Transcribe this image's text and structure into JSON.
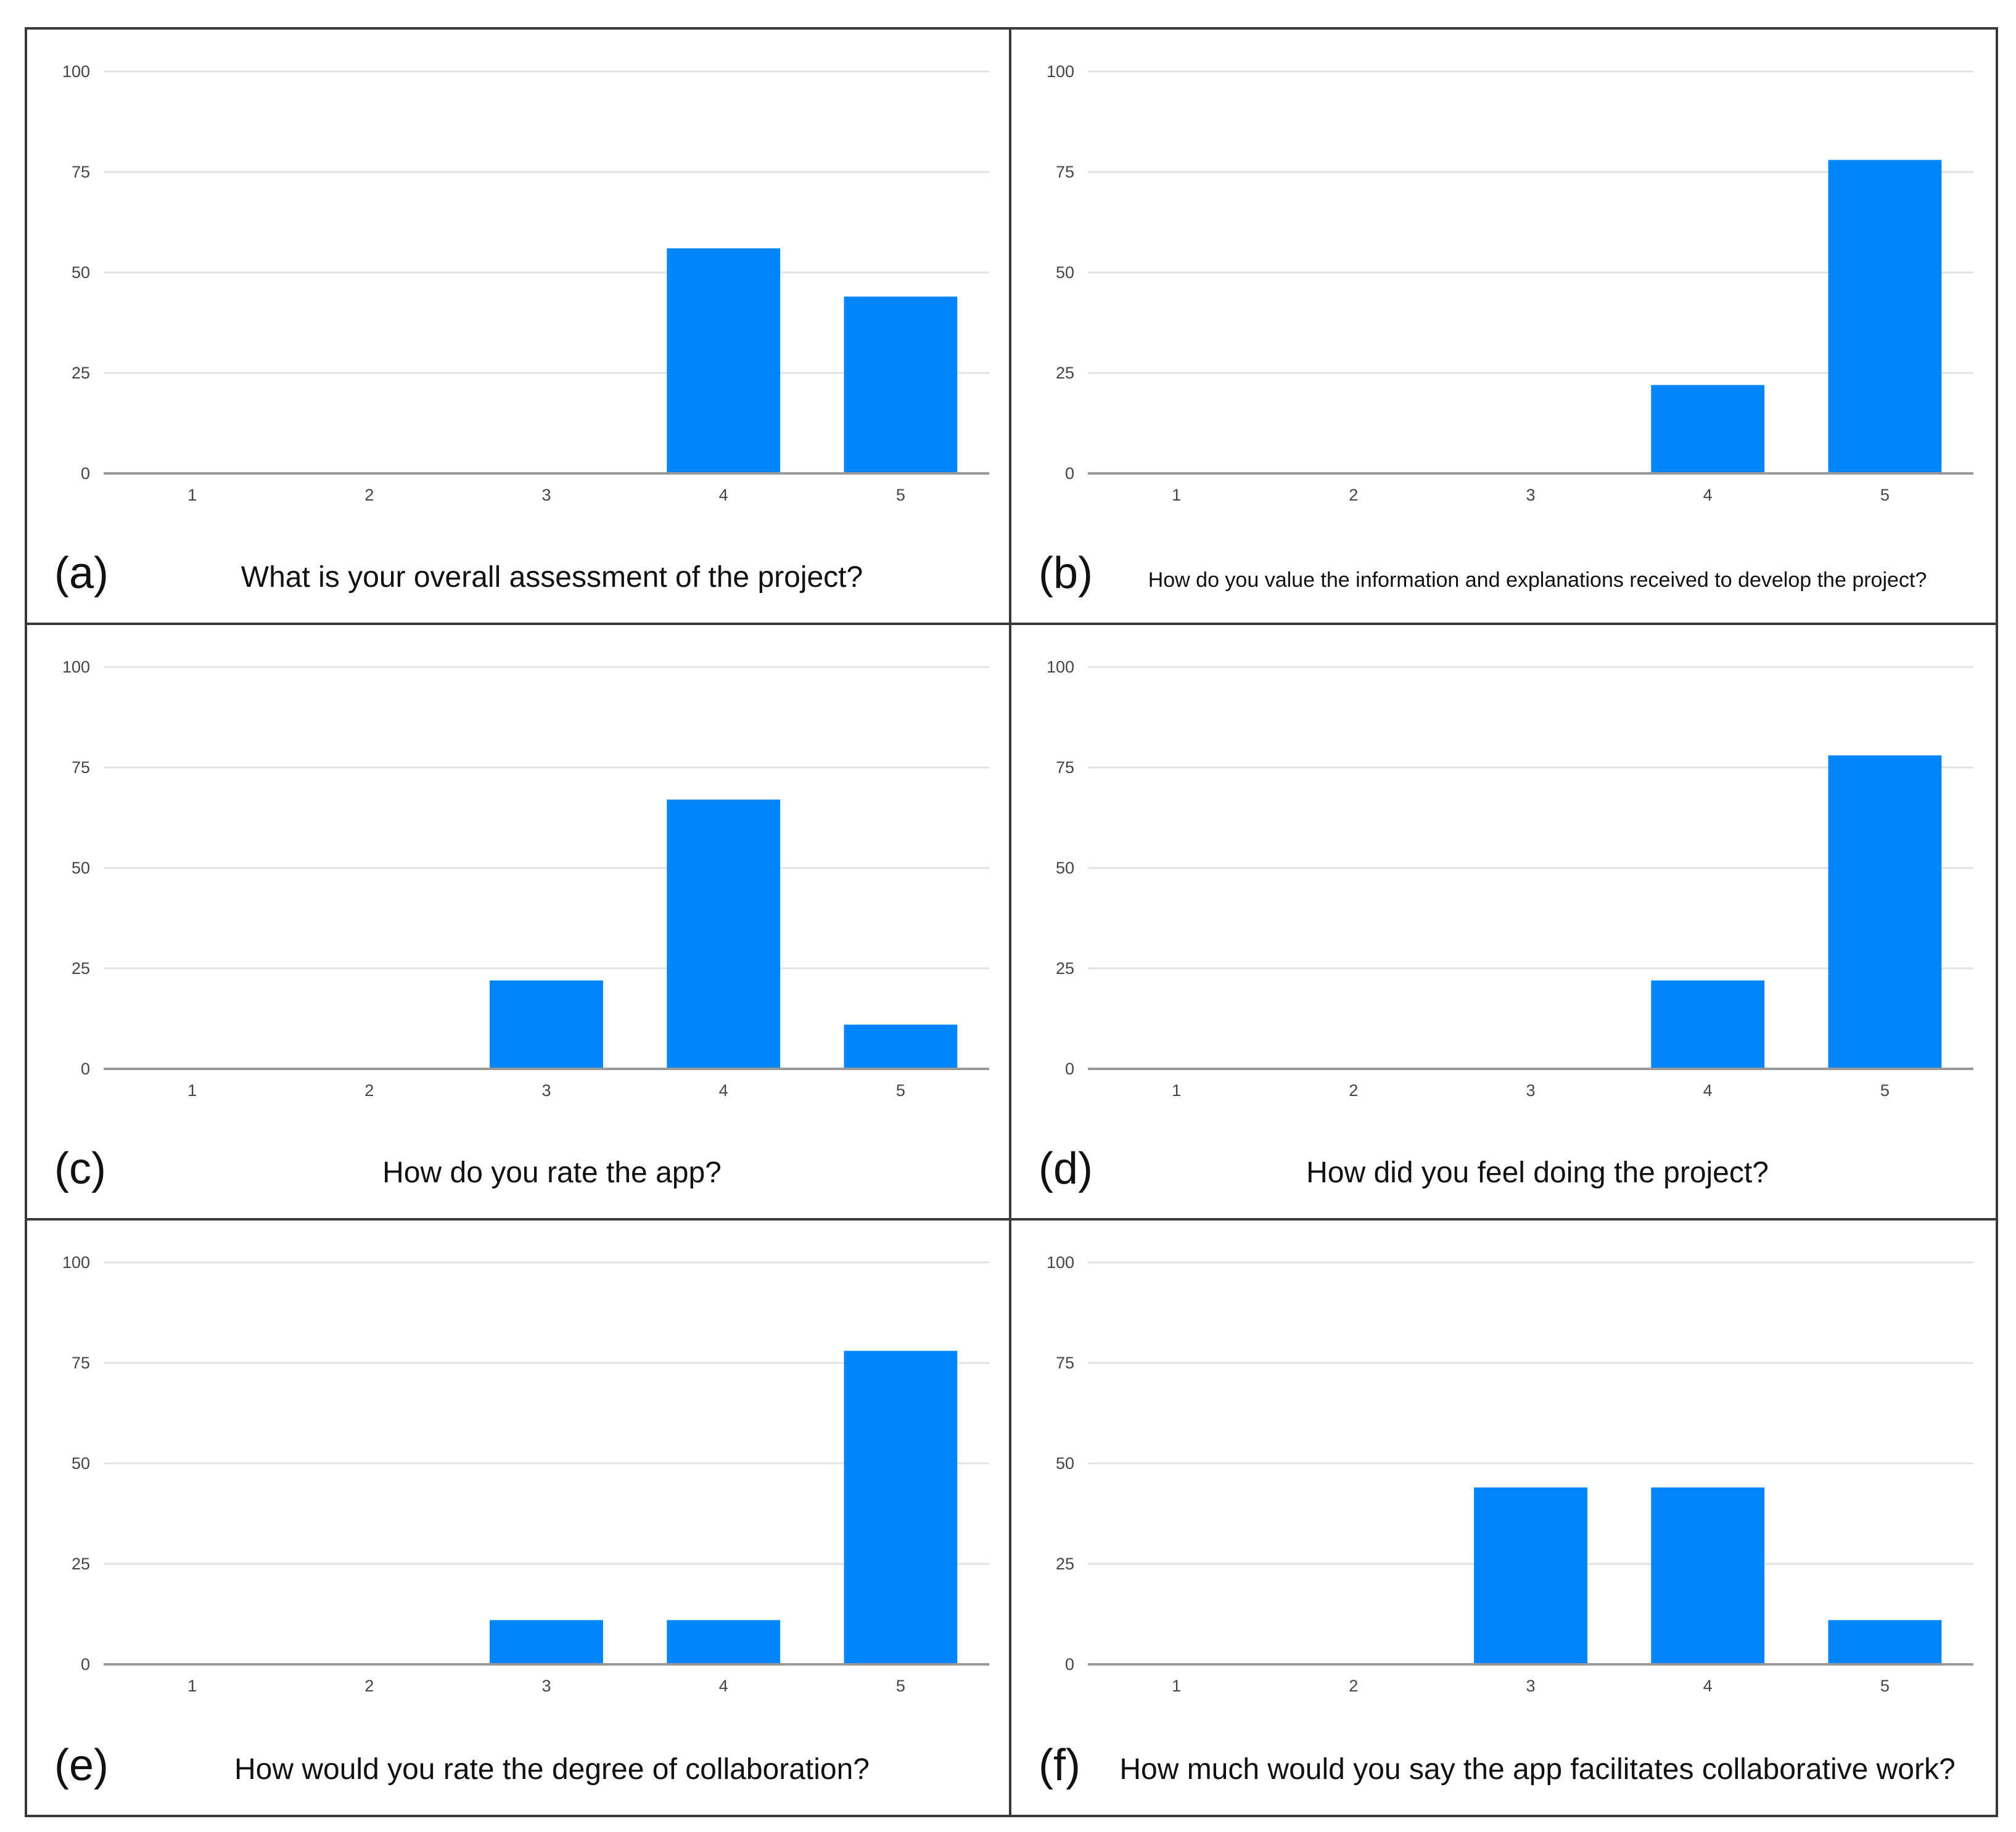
{
  "figure": {
    "bar_color": "#0185fb",
    "grid_color": "#e2e2e2",
    "axis_color": "#999999",
    "border_color": "#3a3a3a"
  },
  "chart_data": [
    {
      "type": "bar",
      "panel": "(a)",
      "title": "What is your overall assessment of the project?",
      "categories": [
        "1",
        "2",
        "3",
        "4",
        "5"
      ],
      "values": [
        0,
        0,
        0,
        56,
        44
      ],
      "yticks": [
        "0",
        "25",
        "50",
        "75",
        "100"
      ],
      "ylim": [
        0,
        100
      ],
      "grid": true
    },
    {
      "type": "bar",
      "panel": "(b)",
      "title": "How do you value the information and explanations received to develop the project?",
      "categories": [
        "1",
        "2",
        "3",
        "4",
        "5"
      ],
      "values": [
        0,
        0,
        0,
        22,
        78
      ],
      "yticks": [
        "0",
        "25",
        "50",
        "75",
        "100"
      ],
      "ylim": [
        0,
        100
      ],
      "grid": true
    },
    {
      "type": "bar",
      "panel": "(c)",
      "title": "How do you rate the app?",
      "categories": [
        "1",
        "2",
        "3",
        "4",
        "5"
      ],
      "values": [
        0,
        0,
        22,
        67,
        11
      ],
      "yticks": [
        "0",
        "25",
        "50",
        "75",
        "100"
      ],
      "ylim": [
        0,
        100
      ],
      "grid": true
    },
    {
      "type": "bar",
      "panel": "(d)",
      "title": "How did you feel doing the project?",
      "categories": [
        "1",
        "2",
        "3",
        "4",
        "5"
      ],
      "values": [
        0,
        0,
        0,
        22,
        78
      ],
      "yticks": [
        "0",
        "25",
        "50",
        "75",
        "100"
      ],
      "ylim": [
        0,
        100
      ],
      "grid": true
    },
    {
      "type": "bar",
      "panel": "(e)",
      "title": "How would you rate the degree of collaboration?",
      "categories": [
        "1",
        "2",
        "3",
        "4",
        "5"
      ],
      "values": [
        0,
        0,
        11,
        11,
        78
      ],
      "yticks": [
        "0",
        "25",
        "50",
        "75",
        "100"
      ],
      "ylim": [
        0,
        100
      ],
      "grid": true
    },
    {
      "type": "bar",
      "panel": "(f)",
      "title": "How much would you say the app facilitates collaborative work?",
      "categories": [
        "1",
        "2",
        "3",
        "4",
        "5"
      ],
      "values": [
        0,
        0,
        44,
        44,
        11
      ],
      "yticks": [
        "0",
        "25",
        "50",
        "75",
        "100"
      ],
      "ylim": [
        0,
        100
      ],
      "grid": true
    }
  ]
}
